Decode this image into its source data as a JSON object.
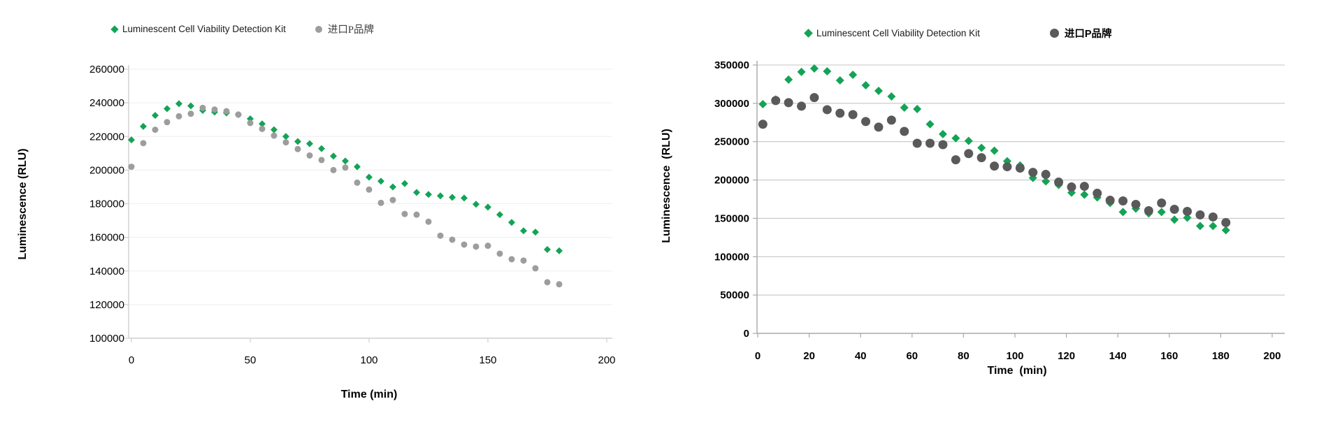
{
  "chart_data": [
    {
      "type": "scatter",
      "title": "",
      "xlabel": "Time (min)",
      "ylabel": "Luminescence (RLU)",
      "xlim": [
        0,
        200
      ],
      "ylim": [
        100000,
        260000
      ],
      "x_ticks": [
        0,
        50,
        100,
        150,
        200
      ],
      "y_ticks": [
        100000,
        120000,
        140000,
        160000,
        180000,
        200000,
        220000,
        240000,
        260000
      ],
      "grid": "horizontal",
      "legend_position": "top",
      "series": [
        {
          "name": "Luminescent Cell Viability Detection Kit",
          "marker": "diamond",
          "color": "#14a356",
          "x": [
            0,
            5,
            10,
            15,
            20,
            25,
            30,
            35,
            40,
            45,
            50,
            55,
            60,
            65,
            70,
            75,
            80,
            85,
            90,
            95,
            100,
            105,
            110,
            115,
            120,
            125,
            130,
            135,
            140,
            145,
            150,
            155,
            160,
            165,
            170,
            175,
            180
          ],
          "y": [
            218000,
            226000,
            232500,
            236500,
            239500,
            238200,
            235500,
            234500,
            234000,
            233000,
            230500,
            227500,
            224000,
            220000,
            217000,
            215700,
            212800,
            208300,
            205400,
            202000,
            195800,
            193400,
            190000,
            192000,
            186700,
            185500,
            184700,
            183800,
            183400,
            179700,
            178000,
            173500,
            168900,
            163900,
            163100,
            152800,
            152000
          ]
        },
        {
          "name": "进口P品牌",
          "marker": "circle",
          "color": "#9d9d9d",
          "x": [
            0,
            5,
            10,
            15,
            20,
            25,
            30,
            35,
            40,
            45,
            50,
            55,
            60,
            65,
            70,
            75,
            80,
            85,
            90,
            95,
            100,
            105,
            110,
            115,
            120,
            125,
            130,
            135,
            140,
            145,
            150,
            155,
            160,
            165,
            170,
            175,
            180
          ],
          "y": [
            202000,
            216000,
            224000,
            228500,
            232000,
            233500,
            237000,
            236000,
            235000,
            233000,
            228000,
            224500,
            220500,
            216500,
            212500,
            208700,
            206000,
            200000,
            201500,
            192500,
            188400,
            180500,
            182200,
            173900,
            173500,
            169300,
            161000,
            158600,
            155700,
            154500,
            155000,
            150300,
            147000,
            146200,
            141600,
            133300,
            132100
          ]
        }
      ]
    },
    {
      "type": "scatter",
      "title": "",
      "xlabel": "Time  (min)",
      "ylabel": "Luminescence  (RLU)",
      "xlim": [
        0,
        200
      ],
      "ylim": [
        0,
        350000
      ],
      "x_ticks": [
        0,
        20,
        40,
        60,
        80,
        100,
        120,
        140,
        160,
        180,
        200
      ],
      "y_ticks": [
        0,
        50000,
        100000,
        150000,
        200000,
        250000,
        300000,
        350000
      ],
      "grid": "horizontal",
      "legend_position": "top",
      "series": [
        {
          "name": "Luminescent Cell Viability Detection Kit",
          "marker": "diamond",
          "color": "#14a356",
          "x": [
            2,
            7,
            12,
            17,
            22,
            27,
            32,
            37,
            42,
            47,
            52,
            57,
            62,
            67,
            72,
            77,
            82,
            87,
            92,
            97,
            102,
            107,
            112,
            117,
            122,
            127,
            132,
            137,
            142,
            147,
            152,
            157,
            162,
            167,
            172,
            177,
            182
          ],
          "y": [
            299000,
            305000,
            331000,
            341000,
            345400,
            341800,
            330000,
            337200,
            323600,
            316300,
            309000,
            294400,
            292600,
            272700,
            259900,
            254500,
            251000,
            242000,
            238200,
            224600,
            219000,
            202700,
            198200,
            193600,
            183600,
            180900,
            177300,
            170000,
            158200,
            162700,
            156400,
            158200,
            148200,
            150900,
            140000,
            140000,
            134500
          ]
        },
        {
          "name": "进口P品牌",
          "marker": "circle",
          "color": "#5a5a5a",
          "x": [
            2,
            7,
            12,
            17,
            22,
            27,
            32,
            37,
            42,
            47,
            52,
            57,
            62,
            67,
            72,
            77,
            82,
            87,
            92,
            97,
            102,
            107,
            112,
            117,
            122,
            127,
            132,
            137,
            142,
            147,
            152,
            157,
            162,
            167,
            172,
            177,
            182
          ],
          "y": [
            272700,
            303600,
            300900,
            296300,
            307500,
            291700,
            287100,
            285300,
            276300,
            269000,
            278100,
            263400,
            247900,
            247900,
            246100,
            226400,
            234500,
            229100,
            218200,
            217300,
            215500,
            210000,
            207300,
            197300,
            190900,
            191800,
            182700,
            173600,
            172700,
            168200,
            160000,
            170000,
            161800,
            159100,
            154500,
            151800,
            144500
          ]
        }
      ]
    }
  ]
}
